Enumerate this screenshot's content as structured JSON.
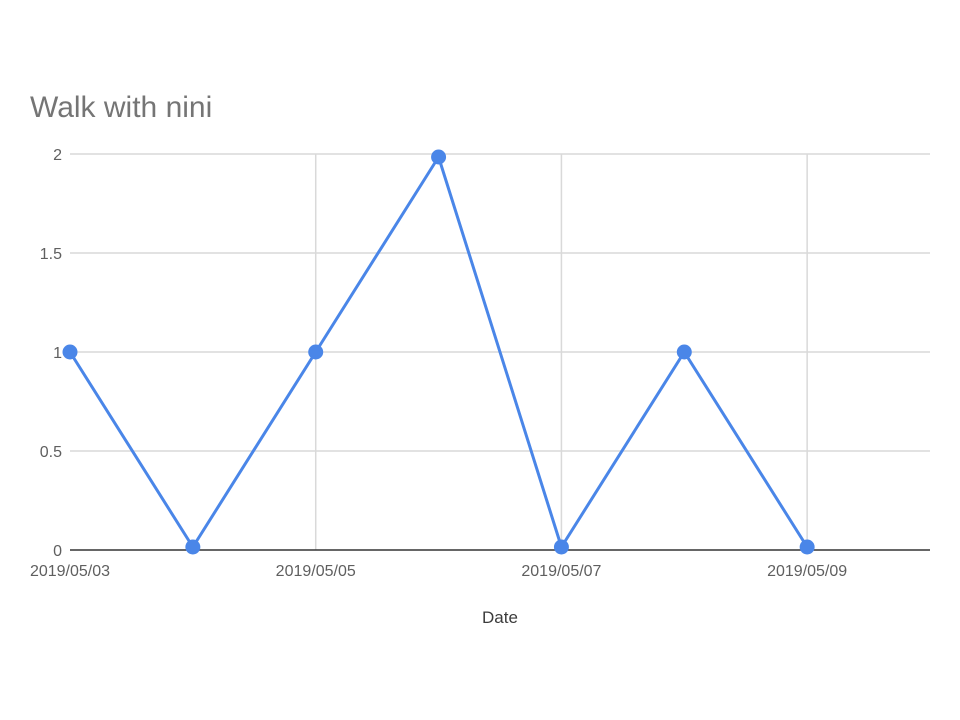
{
  "chart_data": {
    "type": "line",
    "title": "Walk with nini",
    "xlabel": "Date",
    "ylabel": "",
    "x": [
      "2019/05/03",
      "2019/05/04",
      "2019/05/05",
      "2019/05/06",
      "2019/05/07",
      "2019/05/08",
      "2019/05/09"
    ],
    "x_tick_labels": [
      "2019/05/03",
      "2019/05/05",
      "2019/05/07",
      "2019/05/09"
    ],
    "xlim": [
      "2019/05/03",
      "2019/05/10"
    ],
    "series": [
      {
        "values": [
          1,
          0,
          1,
          2,
          0,
          1,
          0
        ]
      }
    ],
    "ylim": [
      0,
      2
    ],
    "y_ticks": [
      0,
      0.5,
      1,
      1.5,
      2
    ],
    "y_tick_labels": [
      "0",
      "0.5",
      "1",
      "1.5",
      "2"
    ],
    "grid": true,
    "legend": "none",
    "colors": {
      "series": "#4a86e8",
      "grid": "#d9d9d9",
      "baseline": "#333333"
    }
  }
}
